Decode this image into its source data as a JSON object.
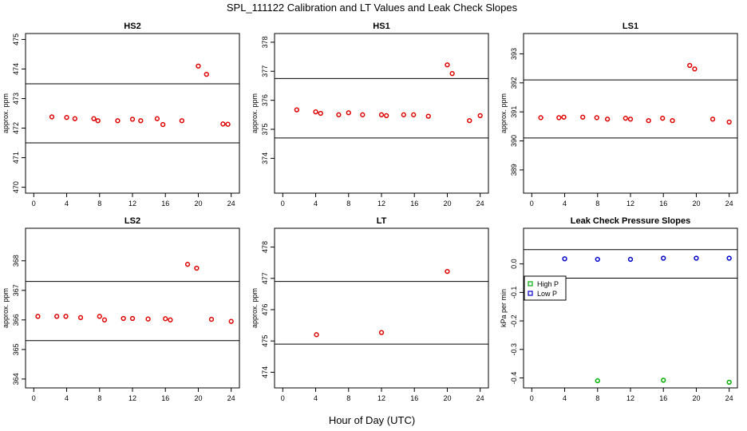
{
  "title": "SPL_111122  Calibration and LT Values and Leak Check Slopes",
  "xlabel": "Hour of Day (UTC)",
  "colors": {
    "cal": "#e00000",
    "high_p": "#00b000",
    "low_p": "#0000cc"
  },
  "chart_data": [
    {
      "type": "scatter",
      "title": "HS2",
      "ylabel": "approx. ppm",
      "xlim": [
        -1,
        25
      ],
      "ylim": [
        469.8,
        475.2
      ],
      "xticks": [
        "0",
        "4",
        "8",
        "12",
        "16",
        "20",
        "24"
      ],
      "xtick_values": [
        0,
        4,
        8,
        12,
        16,
        20,
        24
      ],
      "yticks": [
        "470",
        "471",
        "472",
        "473",
        "474",
        "475"
      ],
      "ytick_values": [
        470,
        471,
        472,
        473,
        474,
        475
      ],
      "hlines": [
        471.5,
        473.5
      ],
      "points": [
        [
          2.2,
          472.38
        ],
        [
          4,
          472.36
        ],
        [
          5,
          472.32
        ],
        [
          7.3,
          472.32
        ],
        [
          7.8,
          472.25
        ],
        [
          10.2,
          472.25
        ],
        [
          12,
          472.3
        ],
        [
          13,
          472.25
        ],
        [
          15,
          472.32
        ],
        [
          15.7,
          472.12
        ],
        [
          18,
          472.25
        ],
        [
          20,
          474.1
        ],
        [
          21,
          473.82
        ],
        [
          23,
          472.14
        ],
        [
          23.6,
          472.13
        ]
      ]
    },
    {
      "type": "scatter",
      "title": "HS1",
      "ylabel": "approx. ppm",
      "xlim": [
        -1,
        25
      ],
      "ylim": [
        372.8,
        378.3
      ],
      "xticks": [
        "0",
        "4",
        "8",
        "12",
        "16",
        "20",
        "24"
      ],
      "xtick_values": [
        0,
        4,
        8,
        12,
        16,
        20,
        24
      ],
      "yticks": [
        "374",
        "375",
        "376",
        "377",
        "378"
      ],
      "ytick_values": [
        374,
        375,
        376,
        377,
        378
      ],
      "hlines": [
        374.7,
        376.75
      ],
      "points": [
        [
          1.7,
          375.67
        ],
        [
          4,
          375.6
        ],
        [
          4.6,
          375.55
        ],
        [
          6.8,
          375.5
        ],
        [
          8,
          375.57
        ],
        [
          9.7,
          375.5
        ],
        [
          12,
          375.5
        ],
        [
          12.6,
          375.47
        ],
        [
          14.7,
          375.5
        ],
        [
          15.9,
          375.5
        ],
        [
          17.7,
          375.45
        ],
        [
          20,
          377.22
        ],
        [
          20.6,
          376.92
        ],
        [
          22.7,
          375.3
        ],
        [
          24,
          375.47
        ]
      ]
    },
    {
      "type": "scatter",
      "title": "LS1",
      "ylabel": "approx. ppm",
      "xlim": [
        -1,
        25
      ],
      "ylim": [
        388.2,
        393.7
      ],
      "xticks": [
        "0",
        "4",
        "8",
        "12",
        "16",
        "20",
        "24"
      ],
      "xtick_values": [
        0,
        4,
        8,
        12,
        16,
        20,
        24
      ],
      "yticks": [
        "389",
        "390",
        "391",
        "392",
        "393"
      ],
      "ytick_values": [
        389,
        390,
        391,
        392,
        393
      ],
      "hlines": [
        390.1,
        392.1
      ],
      "points": [
        [
          1.1,
          390.8
        ],
        [
          3.3,
          390.8
        ],
        [
          3.9,
          390.82
        ],
        [
          6.2,
          390.82
        ],
        [
          7.9,
          390.8
        ],
        [
          9.2,
          390.75
        ],
        [
          11.4,
          390.78
        ],
        [
          12,
          390.75
        ],
        [
          14.2,
          390.7
        ],
        [
          15.9,
          390.78
        ],
        [
          17.1,
          390.7
        ],
        [
          19.2,
          392.6
        ],
        [
          19.8,
          392.48
        ],
        [
          22,
          390.75
        ],
        [
          24,
          390.65
        ]
      ]
    },
    {
      "type": "scatter",
      "title": "LS2",
      "ylabel": "approx. ppm",
      "xlim": [
        -1,
        25
      ],
      "ylim": [
        363.7,
        369.1
      ],
      "xticks": [
        "0",
        "4",
        "8",
        "12",
        "16",
        "20",
        "24"
      ],
      "xtick_values": [
        0,
        4,
        8,
        12,
        16,
        20,
        24
      ],
      "yticks": [
        "364",
        "365",
        "366",
        "367",
        "368"
      ],
      "ytick_values": [
        364,
        365,
        366,
        367,
        368
      ],
      "hlines": [
        365.3,
        367.3
      ],
      "points": [
        [
          0.5,
          366.12
        ],
        [
          2.8,
          366.12
        ],
        [
          3.9,
          366.12
        ],
        [
          5.7,
          366.08
        ],
        [
          8,
          366.12
        ],
        [
          8.6,
          366
        ],
        [
          10.9,
          366.05
        ],
        [
          12,
          366.05
        ],
        [
          13.9,
          366.03
        ],
        [
          16,
          366.04
        ],
        [
          16.6,
          366
        ],
        [
          18.7,
          367.88
        ],
        [
          19.8,
          367.75
        ],
        [
          21.6,
          366.02
        ],
        [
          24,
          365.95
        ]
      ]
    },
    {
      "type": "scatter",
      "title": "LT",
      "ylabel": "approx. ppm",
      "xlim": [
        -1,
        25
      ],
      "ylim": [
        473.5,
        478.6
      ],
      "xticks": [
        "0",
        "4",
        "8",
        "12",
        "16",
        "20",
        "24"
      ],
      "xtick_values": [
        0,
        4,
        8,
        12,
        16,
        20,
        24
      ],
      "yticks": [
        "474",
        "475",
        "476",
        "477",
        "478"
      ],
      "ytick_values": [
        474,
        475,
        476,
        477,
        478
      ],
      "hlines": [
        474.9,
        476.9
      ],
      "points": [
        [
          4.1,
          475.2
        ],
        [
          12,
          475.27
        ],
        [
          20,
          477.22
        ]
      ]
    },
    {
      "type": "scatter",
      "title": "Leak Check Pressure Slopes",
      "ylabel": "kPa per min",
      "xlim": [
        -1,
        25
      ],
      "ylim": [
        -0.435,
        0.125
      ],
      "xticks": [
        "0",
        "4",
        "8",
        "12",
        "16",
        "20",
        "24"
      ],
      "xtick_values": [
        0,
        4,
        8,
        12,
        16,
        20,
        24
      ],
      "yticks": [
        "-0.4",
        "-0.3",
        "-0.2",
        "-0.1",
        "0.0"
      ],
      "ytick_values": [
        -0.4,
        -0.3,
        -0.2,
        -0.1,
        0.0
      ],
      "hlines": [
        0.05,
        -0.05
      ],
      "legend": {
        "placement": "left",
        "entries": [
          "High P",
          "Low P"
        ]
      },
      "series": [
        {
          "name": "High P",
          "color": "#00b000",
          "points": [
            [
              8,
              -0.41
            ],
            [
              16,
              -0.408
            ],
            [
              24,
              -0.415
            ]
          ]
        },
        {
          "name": "Low P",
          "color": "#0000cc",
          "points": [
            [
              4,
              0.018
            ],
            [
              8,
              0.016
            ],
            [
              12,
              0.016
            ],
            [
              16,
              0.02
            ],
            [
              20,
              0.02
            ],
            [
              24,
              0.02
            ]
          ]
        }
      ]
    }
  ]
}
